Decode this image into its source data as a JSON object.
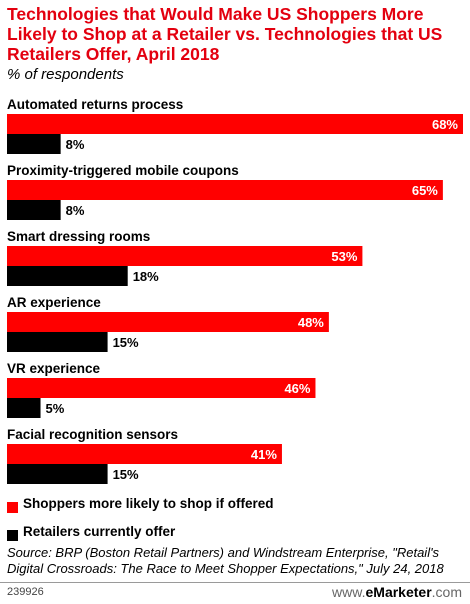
{
  "header": {
    "title": "Technologies that Would Make US Shoppers More Likely to Shop at a Retailer vs. Technologies that US Retailers Offer, April 2018",
    "subtitle": "% of respondents"
  },
  "colors": {
    "shoppers": "#ff0000",
    "retailers": "#000000",
    "title": "#e3000f"
  },
  "chart_data": {
    "type": "bar",
    "orientation": "horizontal",
    "categories": [
      "Automated returns process",
      "Proximity-triggered mobile coupons",
      "Smart dressing rooms",
      "AR experience",
      "VR experience",
      "Facial recognition sensors"
    ],
    "series": [
      {
        "name": "Shoppers more likely to shop if offered",
        "values": [
          68,
          65,
          53,
          48,
          46,
          41
        ]
      },
      {
        "name": "Retailers currently offer",
        "values": [
          8,
          8,
          18,
          15,
          5,
          15
        ]
      }
    ],
    "value_suffix": "%",
    "xlim": [
      0,
      68
    ],
    "legend_position": "bottom-left"
  },
  "legend": [
    {
      "label": "Shoppers more likely to shop if offered",
      "color": "#ff0000"
    },
    {
      "label": "Retailers currently offer",
      "color": "#000000"
    }
  ],
  "footer": {
    "source": "Source: BRP (Boston Retail Partners) and Windstream Enterprise, \"Retail's Digital Crossroads: The Race to Meet Shopper Expectations,\" July 24, 2018",
    "chart_id": "239926",
    "brand_prefix": "www.",
    "brand_name": "eMarketer",
    "brand_suffix": ".com"
  }
}
